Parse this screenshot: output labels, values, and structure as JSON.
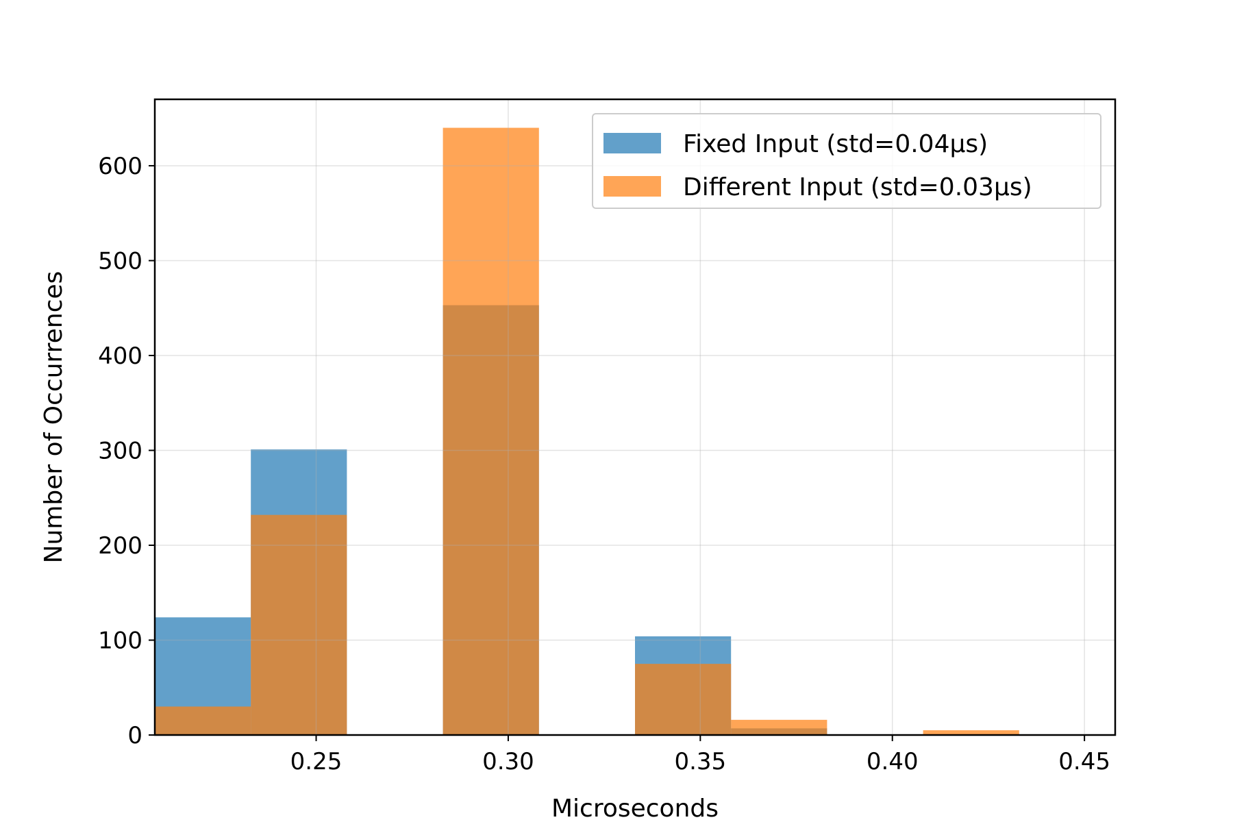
{
  "chart_data": {
    "type": "bar",
    "subtype": "overlapping-histogram",
    "title": "",
    "xlabel": "Microseconds",
    "ylabel": "Number of Occurrences",
    "xlim": [
      0.208,
      0.458
    ],
    "ylim": [
      0,
      670
    ],
    "xticks": [
      0.25,
      0.3,
      0.35,
      0.4,
      0.45
    ],
    "xtick_labels": [
      "0.25",
      "0.30",
      "0.35",
      "0.40",
      "0.45"
    ],
    "yticks": [
      0,
      100,
      200,
      300,
      400,
      500,
      600
    ],
    "ytick_labels": [
      "0",
      "100",
      "200",
      "300",
      "400",
      "500",
      "600"
    ],
    "grid": true,
    "legend_position": "top-right",
    "bin_width": 0.025,
    "bin_starts": [
      0.208,
      0.233,
      0.258,
      0.283,
      0.308,
      0.333,
      0.358,
      0.383,
      0.408,
      0.433
    ],
    "series": [
      {
        "name": "Fixed Input (std=0.04µs)",
        "color": "#1f77b4",
        "opacity": 0.7,
        "values": [
          124,
          301,
          0,
          453,
          0,
          104,
          7,
          0,
          0,
          0
        ]
      },
      {
        "name": "Different Input (std=0.03µs)",
        "color": "#ff7f0e",
        "opacity": 0.7,
        "values": [
          30,
          232,
          0,
          640,
          0,
          75,
          16,
          0,
          5,
          0
        ]
      }
    ]
  }
}
